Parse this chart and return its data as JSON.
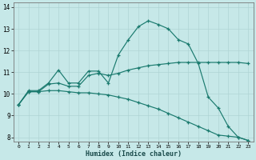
{
  "xlabel": "Humidex (Indice chaleur)",
  "background_color": "#c6e8e8",
  "grid_color": "#b0d4d4",
  "line_color": "#1a7a6e",
  "xlim": [
    -0.5,
    23.5
  ],
  "ylim": [
    7.8,
    14.2
  ],
  "xtick_labels": [
    "0",
    "1",
    "2",
    "3",
    "4",
    "5",
    "6",
    "7",
    "8",
    "9",
    "10",
    "11",
    "12",
    "13",
    "14",
    "15",
    "16",
    "17",
    "18",
    "19",
    "20",
    "21",
    "22",
    "23"
  ],
  "ytick_labels": [
    "8",
    "9",
    "10",
    "11",
    "12",
    "13",
    "14"
  ],
  "ytick_values": [
    8,
    9,
    10,
    11,
    12,
    13,
    14
  ],
  "series": [
    {
      "x": [
        0,
        1,
        2,
        3,
        4,
        5,
        6,
        7,
        8,
        9,
        10,
        11,
        12,
        13,
        14,
        15,
        16,
        17,
        18,
        19,
        20,
        21,
        22,
        23
      ],
      "y": [
        9.5,
        10.15,
        10.15,
        10.5,
        11.1,
        10.5,
        10.5,
        11.05,
        11.05,
        10.5,
        11.8,
        12.5,
        13.1,
        13.37,
        13.2,
        13.0,
        12.5,
        12.3,
        11.4,
        9.85,
        9.35,
        8.5,
        8.0,
        7.85
      ]
    },
    {
      "x": [
        0,
        1,
        2,
        3,
        4,
        5,
        6,
        7,
        8,
        9,
        10,
        11,
        12,
        13,
        14,
        15,
        16,
        17,
        18,
        19,
        20,
        21,
        22,
        23
      ],
      "y": [
        9.5,
        10.1,
        10.1,
        10.45,
        10.5,
        10.35,
        10.35,
        10.85,
        10.95,
        10.85,
        10.95,
        11.1,
        11.2,
        11.3,
        11.35,
        11.4,
        11.45,
        11.45,
        11.45,
        11.45,
        11.45,
        11.45,
        11.45,
        11.4
      ]
    },
    {
      "x": [
        0,
        1,
        2,
        3,
        4,
        5,
        6,
        7,
        8,
        9,
        10,
        11,
        12,
        13,
        14,
        15,
        16,
        17,
        18,
        19,
        20,
        21,
        22,
        23
      ],
      "y": [
        9.5,
        10.1,
        10.1,
        10.15,
        10.15,
        10.1,
        10.05,
        10.05,
        10.0,
        9.95,
        9.85,
        9.75,
        9.6,
        9.45,
        9.3,
        9.1,
        8.9,
        8.7,
        8.5,
        8.3,
        8.1,
        8.05,
        8.0,
        7.85
      ]
    }
  ]
}
